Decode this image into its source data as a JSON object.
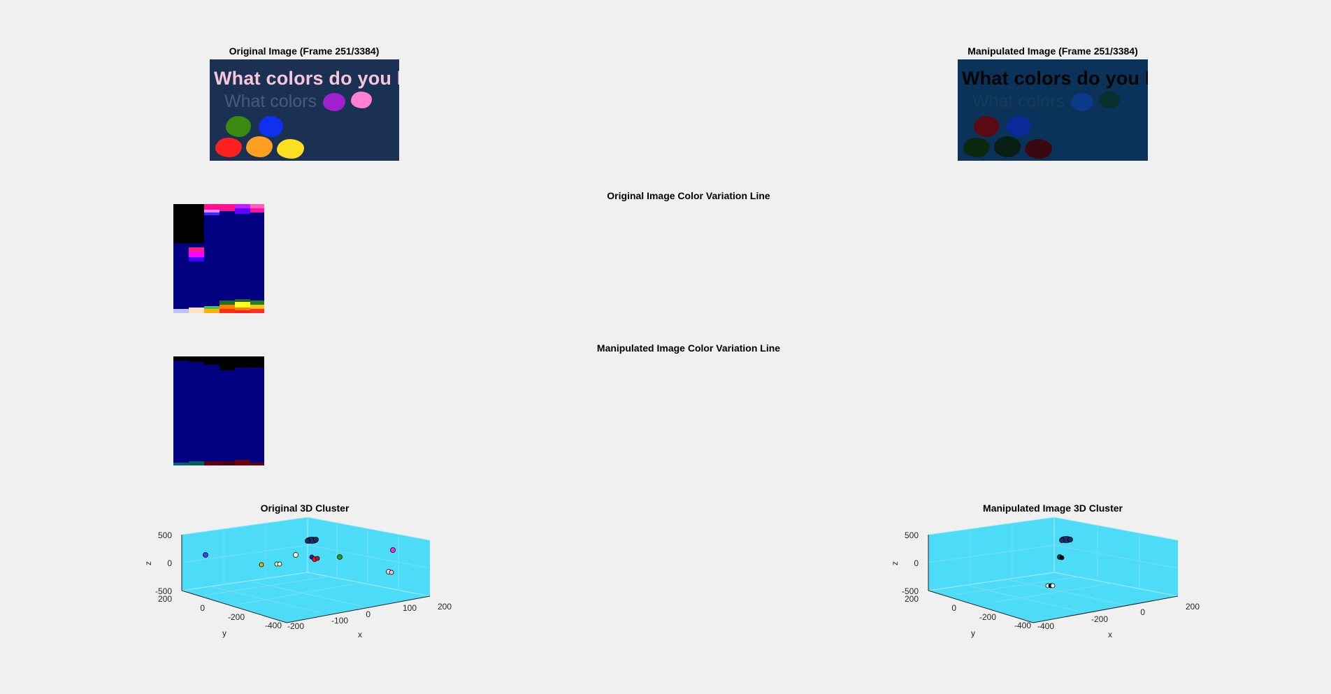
{
  "figure": {
    "original_image_title": "Original Image (Frame 251/3384)",
    "manipulated_image_title": "Manipulated Image (Frame 251/3384)",
    "original_line_title": "Original Image Color Variation Line",
    "manipulated_line_title": "Manipulated Image Color Variation Line",
    "original_cluster_title": "Original 3D Cluster",
    "manipulated_cluster_title": "Manipulated Image 3D Cluster"
  },
  "original_image": {
    "line1": "What colors do you like?",
    "line2": "What colors",
    "background": "#1b3154",
    "line1_color": "#f7c7d8",
    "line2_color": "#4a5a7a",
    "blob_colors": [
      "#a020d0",
      "#ff80d0",
      "#3a8a10",
      "#1030f0",
      "#ff2020",
      "#ffa020",
      "#ffe020"
    ]
  },
  "manipulated_image": {
    "line1": "What colors do you like?",
    "line2": "What colors",
    "background": "#0b3258",
    "line1_color": "#050505",
    "line2_color": "#1a3a5a",
    "blob_colors": [
      "#0a3a8a",
      "#08302f",
      "#5a0a12",
      "#0a2a9a",
      "#0a2a10",
      "#081f14",
      "#3a0810"
    ]
  },
  "cluster_axes": {
    "original": {
      "z_ticks": [
        "500",
        "0",
        "-500"
      ],
      "y_ticks": [
        "200",
        "0",
        "-200",
        "-400"
      ],
      "x_ticks": [
        "-200",
        "-100",
        "0",
        "100",
        "200"
      ],
      "xlabel": "x",
      "ylabel": "y",
      "zlabel": "z"
    },
    "manipulated": {
      "z_ticks": [
        "500",
        "0",
        "-500"
      ],
      "y_ticks": [
        "200",
        "0",
        "-200",
        "-400"
      ],
      "x_ticks": [
        "-400",
        "-200",
        "0",
        "200"
      ],
      "xlabel": "x",
      "ylabel": "y",
      "zlabel": "z"
    },
    "pane_color": "#4ddcf7"
  }
}
